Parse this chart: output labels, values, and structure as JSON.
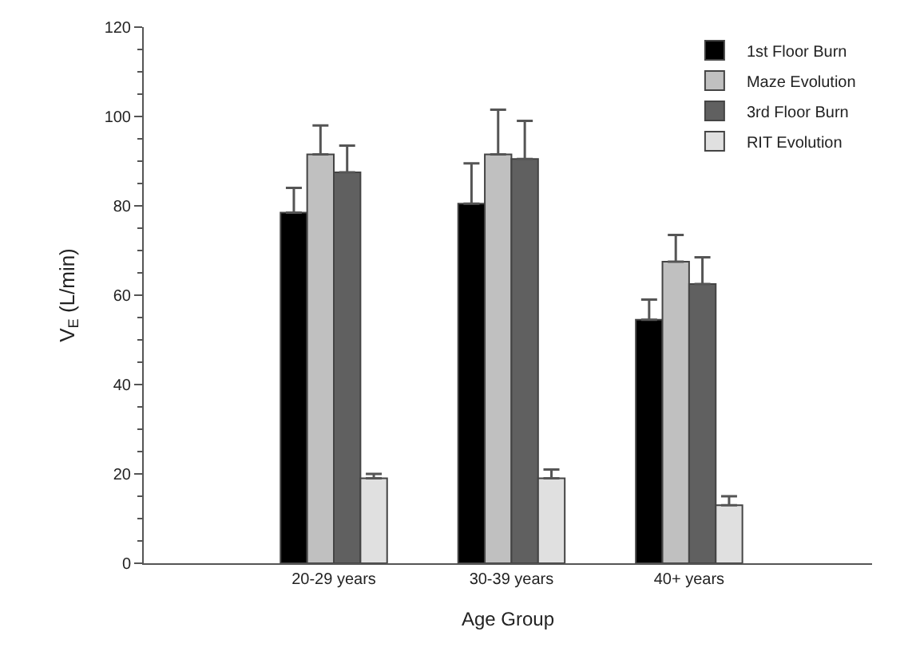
{
  "chart_data": {
    "type": "bar",
    "xlabel": "Age Group",
    "ylabel": "V$_{E}$ (L/min)",
    "categories": [
      "20-29 years",
      "30-39 years",
      "40+ years"
    ],
    "series": [
      {
        "name": "1st Floor Burn",
        "color": "#000000",
        "values": [
          78.5,
          80.5,
          54.5
        ],
        "errors": [
          [
            78.5,
            84
          ],
          [
            80.5,
            89.5
          ],
          [
            54.5,
            59
          ]
        ]
      },
      {
        "name": "Maze Evolution",
        "color": "#c0c0c0",
        "values": [
          91.5,
          91.5,
          67.5
        ],
        "errors": [
          [
            91.5,
            98
          ],
          [
            91.5,
            101.5
          ],
          [
            67.5,
            73.5
          ]
        ]
      },
      {
        "name": "3rd Floor Burn",
        "color": "#606060",
        "values": [
          87.5,
          90.5,
          62.5
        ],
        "errors": [
          [
            87.5,
            93.5
          ],
          [
            90.5,
            99
          ],
          [
            62.5,
            68.5
          ]
        ]
      },
      {
        "name": "RIT Evolution",
        "color": "#e0e0e0",
        "values": [
          19,
          19,
          13
        ],
        "errors": [
          [
            19,
            20
          ],
          [
            19,
            21
          ],
          [
            13,
            15
          ]
        ]
      }
    ],
    "ylim": [
      0,
      120
    ],
    "yticks": [
      0,
      20,
      40,
      60,
      80,
      100,
      120
    ],
    "legend": "top right"
  }
}
